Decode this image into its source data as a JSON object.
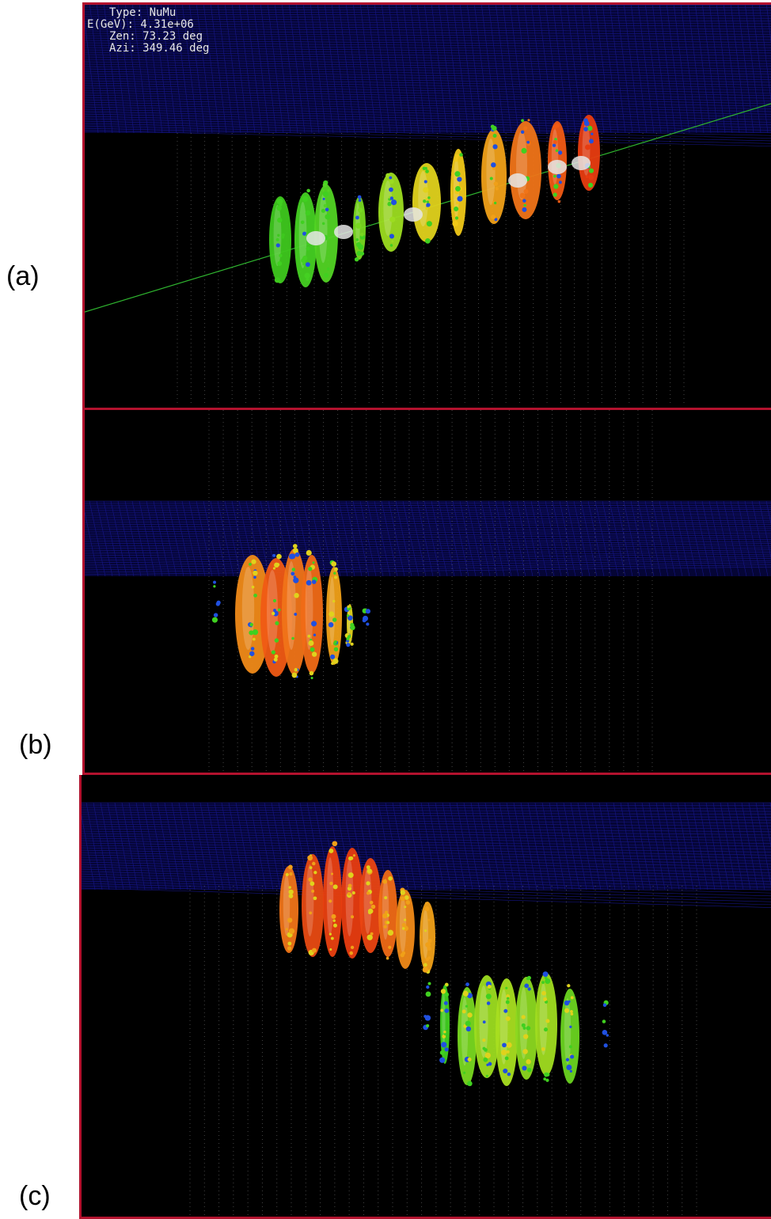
{
  "labels": {
    "a": "(a)",
    "b": "(b)",
    "c": "(c)"
  },
  "event_info": {
    "type": "Type: NuMu",
    "energy": "E(GeV): 4.31e+06",
    "zenith": "Zen: 73.23 deg",
    "azimuth": "Azi: 349.46 deg"
  },
  "colors": {
    "frame": "#b3122e",
    "background": "#000000",
    "grid": "#1a1aa0",
    "strings": "#9a9a9a",
    "track": "#2fb52f",
    "hit_early": "#ff3a10",
    "hit_mid": "#f0d020",
    "hit_late": "#40d020",
    "hit_latest": "#2050e0",
    "deposit": "#e6e6e6"
  }
}
